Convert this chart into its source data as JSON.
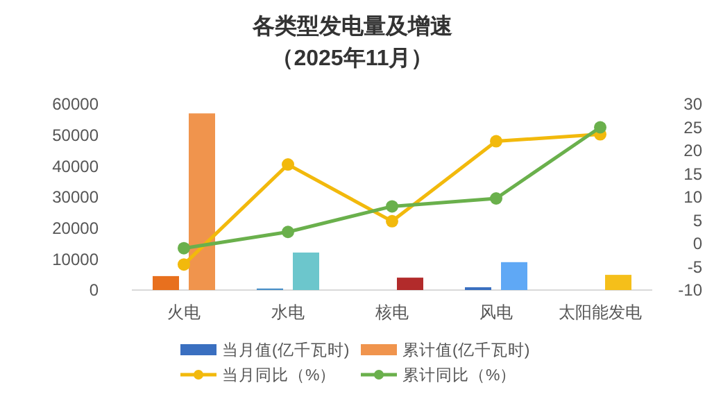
{
  "chart_data": {
    "type": "bar",
    "title": "各类型发电量及增速",
    "subtitle": "（2025年11月）",
    "categories": [
      "火电",
      "水电",
      "核电",
      "风电",
      "太阳能发电"
    ],
    "series": [
      {
        "name": "当月值(亿千瓦时)",
        "color": "#3a6fc0",
        "colors": [
          "#e8701e",
          "#4a90c8",
          null,
          "#3a6fc0",
          null
        ],
        "values": [
          4500,
          500,
          null,
          900,
          null
        ]
      },
      {
        "name": "累计值(亿千瓦时)",
        "color": "#f0944d",
        "colors": [
          "#f0944d",
          "#6cc6cc",
          "#b22b2b",
          "#5fa8f5",
          "#f5bf1a"
        ],
        "values": [
          57000,
          12100,
          4000,
          9000,
          4900
        ]
      },
      {
        "name": "当月同比（%）",
        "type": "line",
        "axis": "y2",
        "color": "#f2b90c",
        "values": [
          -4.5,
          17,
          4.8,
          22,
          23.5
        ]
      },
      {
        "name": "累计同比（%）",
        "type": "line",
        "axis": "y2",
        "color": "#6ab04c",
        "values": [
          -1,
          2.5,
          8,
          9.7,
          25
        ]
      }
    ],
    "ylim": [
      0,
      60000
    ],
    "yticks": [
      0,
      10000,
      20000,
      30000,
      40000,
      50000,
      60000
    ],
    "y2lim": [
      -10,
      30
    ],
    "y2ticks": [
      -10,
      -5,
      0,
      5,
      10,
      15,
      20,
      25,
      30
    ],
    "marker": "circle",
    "legend": "bottom"
  }
}
